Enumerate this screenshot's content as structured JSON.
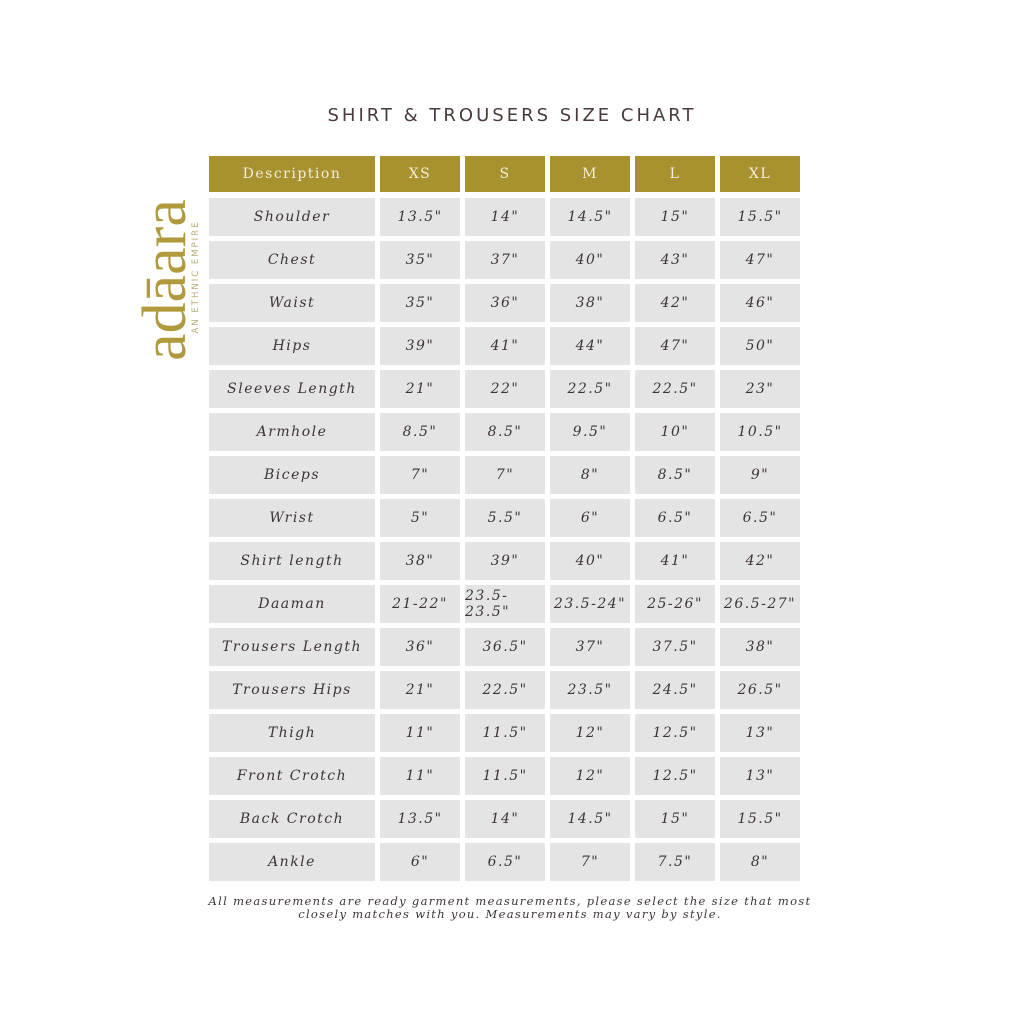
{
  "title": "SHIRT & TROUSERS SIZE CHART",
  "logo": {
    "name": "adāara",
    "tagline": "AN ETHNIC EMPIRE"
  },
  "colors": {
    "header": "#a8912f",
    "cell": "#e4e4e4",
    "text": "#3e3434"
  },
  "table": {
    "headers": [
      "Description",
      "XS",
      "S",
      "M",
      "L",
      "XL"
    ],
    "rows": [
      [
        "Shoulder",
        "13.5\"",
        "14\"",
        "14.5\"",
        "15\"",
        "15.5\""
      ],
      [
        "Chest",
        "35\"",
        "37\"",
        "40\"",
        "43\"",
        "47\""
      ],
      [
        "Waist",
        "35\"",
        "36\"",
        "38\"",
        "42\"",
        "46\""
      ],
      [
        "Hips",
        "39\"",
        "41\"",
        "44\"",
        "47\"",
        "50\""
      ],
      [
        "Sleeves Length",
        "21\"",
        "22\"",
        "22.5\"",
        "22.5\"",
        "23\""
      ],
      [
        "Armhole",
        "8.5\"",
        "8.5\"",
        "9.5\"",
        "10\"",
        "10.5\""
      ],
      [
        "Biceps",
        "7\"",
        "7\"",
        "8\"",
        "8.5\"",
        "9\""
      ],
      [
        "Wrist",
        "5\"",
        "5.5\"",
        "6\"",
        "6.5\"",
        "6.5\""
      ],
      [
        "Shirt length",
        "38\"",
        "39\"",
        "40\"",
        "41\"",
        "42\""
      ],
      [
        "Daaman",
        "21-22\"",
        "23.5-23.5\"",
        "23.5-24\"",
        "25-26\"",
        "26.5-27\""
      ],
      [
        "Trousers Length",
        "36\"",
        "36.5\"",
        "37\"",
        "37.5\"",
        "38\""
      ],
      [
        "Trousers Hips",
        "21\"",
        "22.5\"",
        "23.5\"",
        "24.5\"",
        "26.5\""
      ],
      [
        "Thigh",
        "11\"",
        "11.5\"",
        "12\"",
        "12.5\"",
        "13\""
      ],
      [
        "Front Crotch",
        "11\"",
        "11.5\"",
        "12\"",
        "12.5\"",
        "13\""
      ],
      [
        "Back Crotch",
        "13.5\"",
        "14\"",
        "14.5\"",
        "15\"",
        "15.5\""
      ],
      [
        "Ankle",
        "6\"",
        "6.5\"",
        "7\"",
        "7.5\"",
        "8\""
      ]
    ]
  },
  "note": "All measurements are ready garment measurements, please select the size that most closely matches with you. Measurements may vary by style."
}
